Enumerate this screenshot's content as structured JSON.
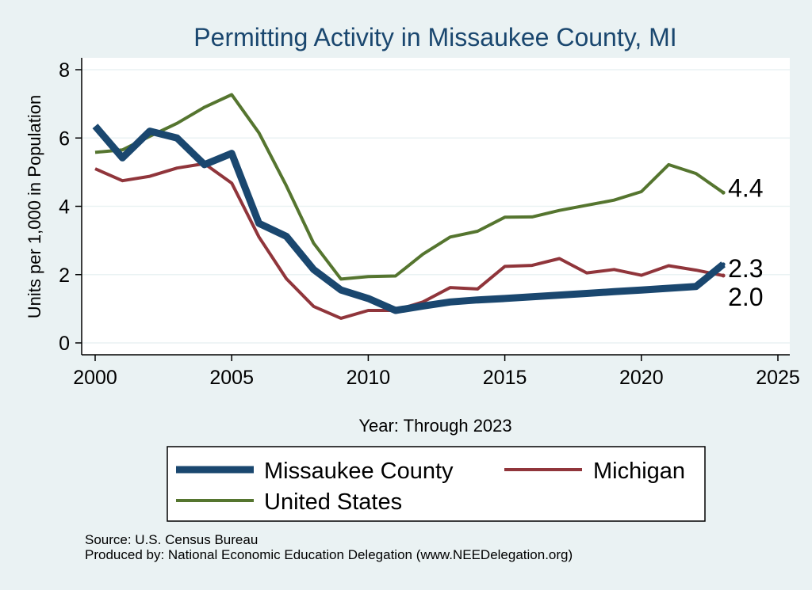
{
  "chart_data": {
    "type": "line",
    "title": "Permitting Activity in Missaukee County, MI",
    "xlabel": "Year: Through 2023",
    "ylabel": "Units per 1,000 in Population",
    "xlim": [
      2000,
      2025
    ],
    "ylim": [
      0,
      8
    ],
    "xticks": [
      2000,
      2005,
      2010,
      2015,
      2020,
      2025
    ],
    "yticks": [
      0,
      2,
      4,
      6,
      8
    ],
    "x": [
      2000,
      2001,
      2002,
      2003,
      2004,
      2005,
      2006,
      2007,
      2008,
      2009,
      2010,
      2011,
      2012,
      2013,
      2014,
      2015,
      2016,
      2017,
      2018,
      2019,
      2020,
      2021,
      2022,
      2023
    ],
    "series": [
      {
        "name": "Missaukee County",
        "color": "#1a476f",
        "width": 9,
        "values": [
          6.35,
          5.42,
          6.2,
          6.0,
          5.22,
          5.55,
          3.5,
          3.12,
          2.15,
          1.55,
          1.3,
          0.95,
          1.08,
          1.2,
          1.26,
          1.3,
          1.35,
          1.4,
          1.45,
          1.5,
          1.55,
          1.6,
          1.65,
          2.3
        ],
        "end_label": "2.3"
      },
      {
        "name": "Michigan",
        "color": "#90353b",
        "width": 4,
        "values": [
          5.1,
          4.75,
          4.88,
          5.12,
          5.25,
          4.68,
          3.1,
          1.88,
          1.07,
          0.72,
          0.95,
          0.95,
          1.2,
          1.62,
          1.58,
          2.24,
          2.27,
          2.47,
          2.05,
          2.15,
          1.98,
          2.26,
          2.13,
          1.97
        ],
        "end_label": "2.0"
      },
      {
        "name": "United States",
        "color": "#55752f",
        "width": 4,
        "values": [
          5.58,
          5.65,
          6.05,
          6.43,
          6.9,
          7.27,
          6.15,
          4.6,
          2.92,
          1.87,
          1.94,
          1.96,
          2.6,
          3.1,
          3.27,
          3.68,
          3.69,
          3.88,
          4.03,
          4.18,
          4.43,
          5.22,
          4.96,
          4.4
        ],
        "end_label": "4.4"
      }
    ],
    "legend": {
      "position": "bottom",
      "entries": [
        "Missaukee County",
        "Michigan",
        "United States"
      ]
    },
    "grid": true
  },
  "source_line": "Source: U.S. Census Bureau",
  "produced_line": "Produced by: National Economic Education Delegation (www.NEEDelegation.org)",
  "colors": {
    "background": "#eaf2f3",
    "plot_background": "#ffffff",
    "title": "#1a476f",
    "grid": "#eaf2f3"
  }
}
